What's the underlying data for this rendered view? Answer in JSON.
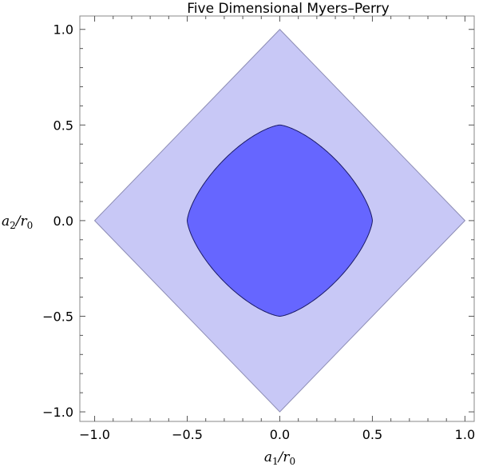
{
  "chart_data": {
    "type": "area",
    "title": "Five Dimensional Myers–Perry",
    "xlabel": {
      "var": "a",
      "sub": "1",
      "sep": "/",
      "var2": "r",
      "sub2": "0"
    },
    "ylabel": {
      "var": "a",
      "sub": "2",
      "sep": "/",
      "var2": "r",
      "sub2": "0"
    },
    "xlim": [
      -1.08,
      1.05
    ],
    "ylim": [
      -1.05,
      1.07
    ],
    "grid": false,
    "frame": true,
    "xticks": [
      {
        "value": -1.0,
        "label": "−1.0"
      },
      {
        "value": -0.5,
        "label": "−0.5"
      },
      {
        "value": 0.0,
        "label": "0.0"
      },
      {
        "value": 0.5,
        "label": "0.5"
      },
      {
        "value": 1.0,
        "label": "1.0"
      }
    ],
    "yticks": [
      {
        "value": -1.0,
        "label": "−1.0"
      },
      {
        "value": -0.5,
        "label": "−0.5"
      },
      {
        "value": 0.0,
        "label": "0.0"
      },
      {
        "value": 0.5,
        "label": "0.5"
      },
      {
        "value": 1.0,
        "label": "1.0"
      }
    ],
    "series": [
      {
        "region": "|a1| + |a2| <= 1",
        "vertices": [
          [
            1.0,
            0.0
          ],
          [
            0.0,
            1.0
          ],
          [
            -1.0,
            0.0
          ],
          [
            0.0,
            -1.0
          ]
        ],
        "fill": "#c8c8f6",
        "stroke": "#8c8cb4"
      },
      {
        "region": "rounded square, |a1| <= 0.5, |a2| <= 0.5",
        "extent": 0.5,
        "superellipse_exponent": 1.45,
        "fill": "#6666ff",
        "stroke": "#1a1a66"
      }
    ]
  }
}
